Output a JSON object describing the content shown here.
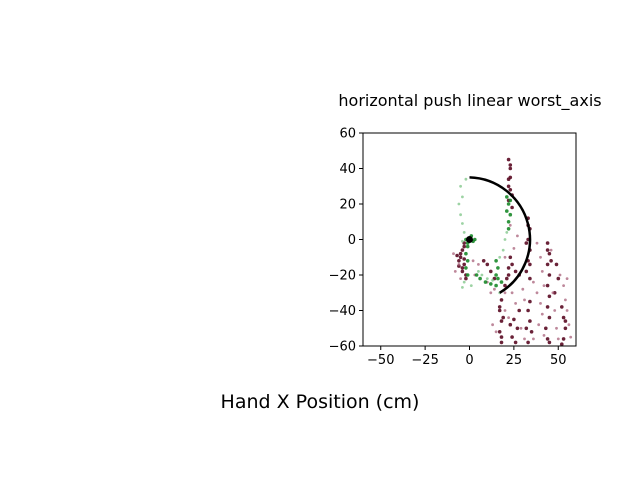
{
  "chart_data": {
    "type": "scatter",
    "title": "horizontal push linear worst_axis",
    "xlabel": "Hand X Position (cm)",
    "ylabel": "",
    "xlim": [
      -60,
      60
    ],
    "ylim": [
      -60,
      60
    ],
    "xticks": [
      -50,
      -25,
      0,
      25,
      50
    ],
    "yticks": [
      -60,
      -40,
      -20,
      0,
      20,
      40,
      60
    ],
    "grid": false,
    "legend": "none",
    "colors": {
      "maroon": "#5a0a22",
      "maroon_faded": "#a86079",
      "green": "#1a8a2a",
      "green_faded": "#7cc486",
      "arc": "#000000"
    },
    "target_arc": {
      "center": [
        0,
        0
      ],
      "radius": 35,
      "start_point": [
        0,
        35
      ],
      "end_point": [
        17,
        -30
      ]
    },
    "start_marker": {
      "x": 0,
      "y": 0
    },
    "series": [
      {
        "color": "maroon",
        "points": [
          [
            -3,
            -2
          ],
          [
            -4,
            -6
          ],
          [
            -5,
            -10
          ],
          [
            -3,
            -14
          ],
          [
            -4,
            -18
          ],
          [
            -2,
            -22
          ],
          [
            -5,
            -8
          ],
          [
            -6,
            -12
          ],
          [
            -3,
            -4
          ],
          [
            -4,
            -16
          ],
          [
            -2,
            -20
          ],
          [
            -6,
            -15
          ],
          [
            -7,
            -9
          ],
          [
            -3,
            -11
          ],
          [
            22,
            45
          ],
          [
            23,
            40
          ],
          [
            22,
            34
          ],
          [
            23,
            28
          ],
          [
            22,
            22
          ],
          [
            24,
            18
          ],
          [
            23,
            35
          ],
          [
            22,
            30
          ],
          [
            23,
            42
          ],
          [
            24,
            25
          ],
          [
            33,
            12
          ],
          [
            34,
            6
          ],
          [
            33,
            0
          ],
          [
            34,
            -6
          ],
          [
            33,
            -12
          ],
          [
            32,
            -18
          ],
          [
            34,
            -22
          ],
          [
            33,
            8
          ],
          [
            32,
            -2
          ],
          [
            34,
            -14
          ],
          [
            23,
            -10
          ],
          [
            22,
            -16
          ],
          [
            21,
            -22
          ],
          [
            20,
            -26
          ],
          [
            24,
            -14
          ],
          [
            26,
            -18
          ],
          [
            28,
            -20
          ],
          [
            22,
            -20
          ],
          [
            18,
            -34
          ],
          [
            17,
            -40
          ],
          [
            18,
            -46
          ],
          [
            17,
            -52
          ],
          [
            18,
            -58
          ],
          [
            19,
            -44
          ],
          [
            17,
            -38
          ],
          [
            18,
            -55
          ],
          [
            25,
            -45
          ],
          [
            27,
            -50
          ],
          [
            24,
            -55
          ],
          [
            26,
            -58
          ],
          [
            28,
            -40
          ],
          [
            23,
            -48
          ],
          [
            33,
            -40
          ],
          [
            34,
            -46
          ],
          [
            35,
            -52
          ],
          [
            33,
            -58
          ],
          [
            34,
            -35
          ],
          [
            32,
            -50
          ],
          [
            44,
            -2
          ],
          [
            45,
            -8
          ],
          [
            44,
            -14
          ],
          [
            45,
            -20
          ],
          [
            44,
            -26
          ],
          [
            45,
            -32
          ],
          [
            46,
            -12
          ],
          [
            44,
            -6
          ],
          [
            44,
            -38
          ],
          [
            45,
            -44
          ],
          [
            43,
            -50
          ],
          [
            44,
            -56
          ],
          [
            45,
            -58
          ],
          [
            52,
            -38
          ],
          [
            53,
            -44
          ],
          [
            54,
            -50
          ],
          [
            53,
            -56
          ],
          [
            52,
            -59
          ],
          [
            54,
            -46
          ],
          [
            49,
            -14
          ],
          [
            50,
            -22
          ],
          [
            48,
            -30
          ],
          [
            10,
            -14
          ],
          [
            12,
            -18
          ],
          [
            14,
            -22
          ],
          [
            8,
            -12
          ]
        ]
      },
      {
        "color": "maroon_faded",
        "points": [
          [
            -6,
            -14
          ],
          [
            -9,
            -8
          ],
          [
            -5,
            -22
          ],
          [
            -8,
            -18
          ],
          [
            2,
            -12
          ],
          [
            5,
            -14
          ],
          [
            3,
            -20
          ],
          [
            10,
            -24
          ],
          [
            14,
            -28
          ],
          [
            12,
            -30
          ],
          [
            20,
            -40
          ],
          [
            22,
            -44
          ],
          [
            15,
            -52
          ],
          [
            13,
            -48
          ],
          [
            30,
            -28
          ],
          [
            31,
            -34
          ],
          [
            36,
            -24
          ],
          [
            38,
            -30
          ],
          [
            40,
            -36
          ],
          [
            41,
            -42
          ],
          [
            39,
            -48
          ],
          [
            42,
            -54
          ],
          [
            47,
            -30
          ],
          [
            48,
            -40
          ],
          [
            49,
            -50
          ],
          [
            50,
            -56
          ],
          [
            55,
            -40
          ],
          [
            56,
            -48
          ],
          [
            57,
            -55
          ],
          [
            51,
            -20
          ],
          [
            53,
            -26
          ],
          [
            40,
            -10
          ],
          [
            41,
            -18
          ],
          [
            38,
            -2
          ],
          [
            29,
            -50
          ],
          [
            31,
            -56
          ],
          [
            26,
            -36
          ],
          [
            24,
            -30
          ],
          [
            20,
            -10
          ],
          [
            25,
            -5
          ],
          [
            27,
            2
          ],
          [
            23,
            8
          ],
          [
            20,
            -30
          ],
          [
            36,
            -56
          ],
          [
            46,
            -6
          ],
          [
            42,
            -26
          ],
          [
            54,
            -34
          ],
          [
            55,
            -22
          ]
        ]
      },
      {
        "color": "green",
        "points": [
          [
            -1,
            -4
          ],
          [
            -2,
            -8
          ],
          [
            -1,
            -12
          ],
          [
            -2,
            -16
          ],
          [
            -1,
            -20
          ],
          [
            -2,
            0
          ],
          [
            -1,
            -2
          ],
          [
            3,
            0
          ],
          [
            1,
            2
          ],
          [
            2,
            -1
          ],
          [
            21,
            24
          ],
          [
            22,
            20
          ],
          [
            23,
            14
          ],
          [
            22,
            10
          ],
          [
            21,
            16
          ],
          [
            23,
            22
          ],
          [
            22,
            6
          ],
          [
            15,
            -20
          ],
          [
            16,
            -16
          ],
          [
            15,
            -12
          ],
          [
            16,
            -22
          ],
          [
            15,
            -26
          ],
          [
            9,
            -24
          ],
          [
            12,
            -25
          ],
          [
            18,
            -24
          ],
          [
            6,
            -22
          ],
          [
            4,
            -20
          ]
        ]
      },
      {
        "color": "green_faded",
        "points": [
          [
            -5,
            30
          ],
          [
            -4,
            24
          ],
          [
            -6,
            20
          ],
          [
            -5,
            14
          ],
          [
            -4,
            9
          ],
          [
            -3,
            4
          ],
          [
            -4,
            -1
          ],
          [
            5,
            -18
          ],
          [
            7,
            -20
          ],
          [
            10,
            -22
          ],
          [
            13,
            -23
          ],
          [
            17,
            -10
          ],
          [
            19,
            -6
          ],
          [
            20,
            0
          ],
          [
            21,
            4
          ],
          [
            -3,
            -24
          ],
          [
            -4,
            -27
          ],
          [
            1,
            -26
          ],
          [
            -2,
            34
          ],
          [
            17,
            -30
          ]
        ]
      }
    ]
  }
}
